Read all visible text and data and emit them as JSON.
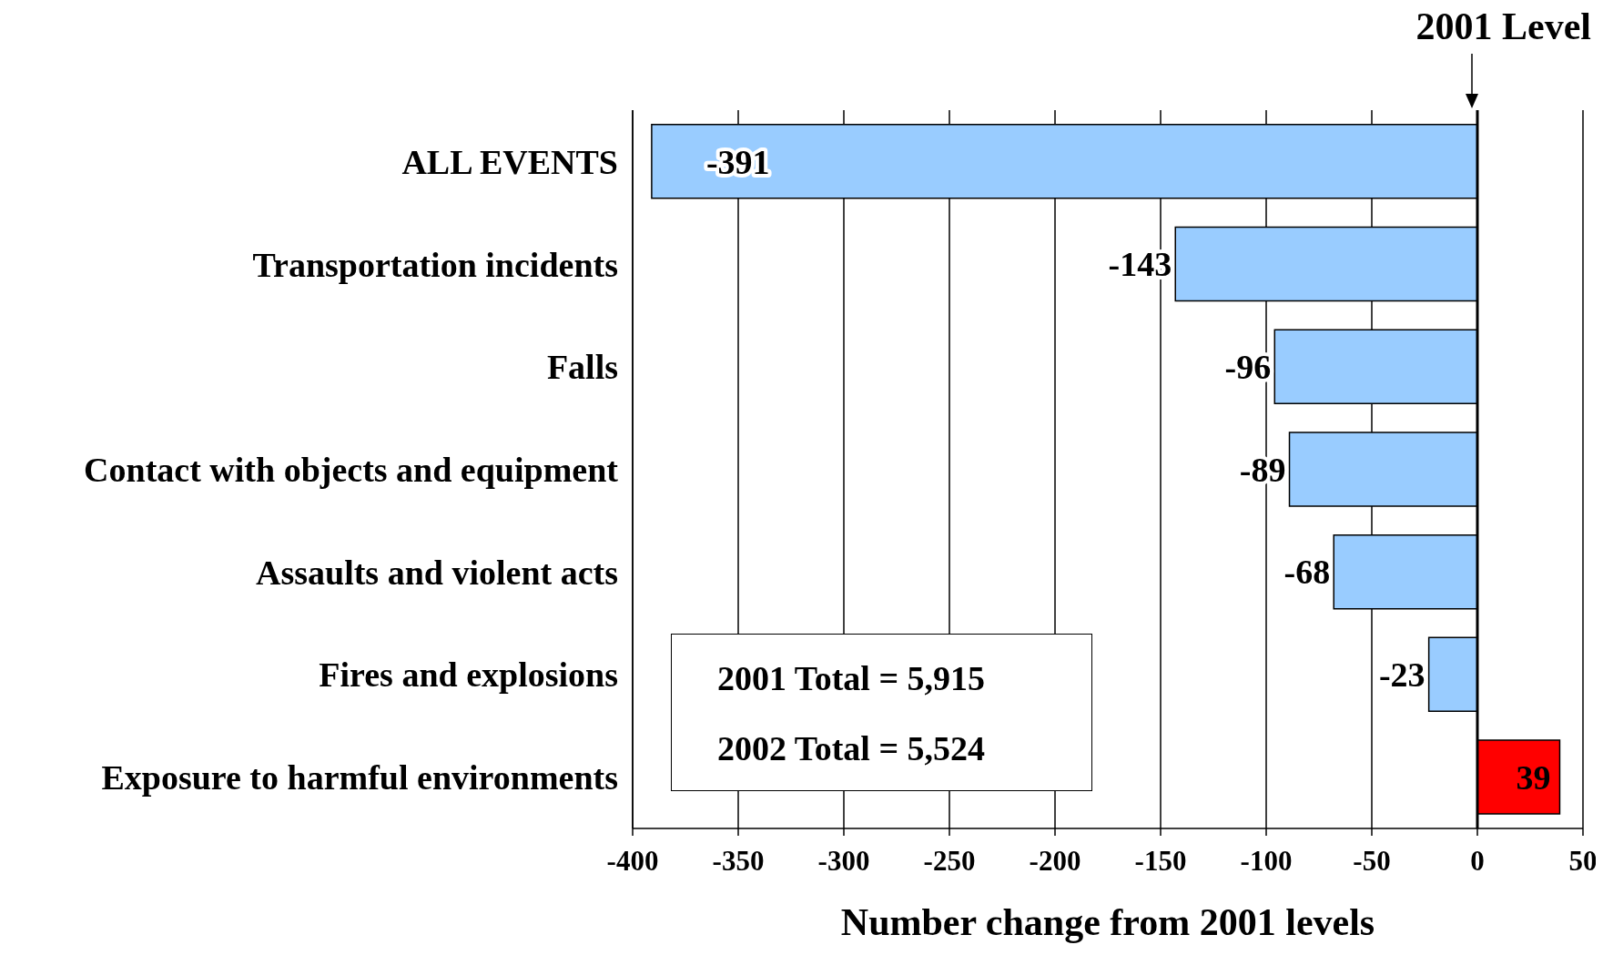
{
  "chart_data": {
    "type": "bar",
    "orientation": "horizontal",
    "xlabel": "Number change from 2001 levels",
    "categories": [
      "ALL EVENTS",
      "Transportation incidents",
      "Falls",
      "Contact with objects and equipment",
      "Assaults and violent acts",
      "Fires and explosions",
      "Exposure to harmful environments"
    ],
    "values": [
      -391,
      -143,
      -96,
      -89,
      -68,
      -23,
      39
    ],
    "colors": [
      "#99ccff",
      "#99ccff",
      "#99ccff",
      "#99ccff",
      "#99ccff",
      "#99ccff",
      "#ff0000"
    ],
    "xlim": [
      -400,
      50
    ],
    "xticks": [
      -400,
      -350,
      -300,
      -250,
      -200,
      -150,
      -100,
      -50,
      0,
      50
    ],
    "grid": "x",
    "data_labels": true,
    "ref_lines": [
      {
        "axis": "x",
        "value": 0,
        "label": "2001 Level",
        "color": "#000000"
      }
    ],
    "annotations": [
      "2001 Total = 5,915",
      "2002 Total = 5,524"
    ]
  }
}
